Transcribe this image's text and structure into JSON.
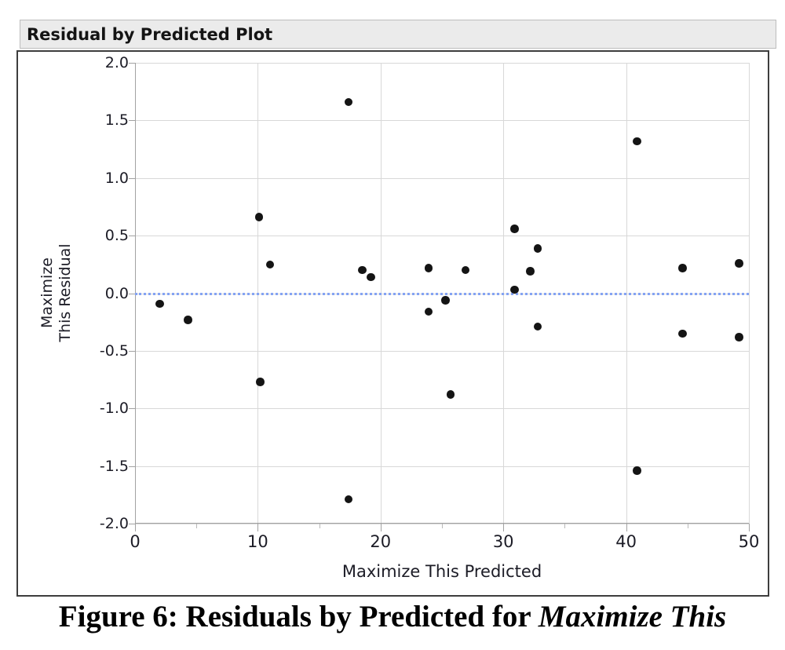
{
  "window": {
    "title": "Residual by Predicted Plot"
  },
  "chart_data": {
    "type": "scatter",
    "title": "Residual by Predicted Plot",
    "xlabel": "Maximize This Predicted",
    "ylabel": "Maximize This Residual",
    "ylabel_lines": [
      "Maximize",
      "This Residual"
    ],
    "xlim": [
      0,
      50
    ],
    "ylim": [
      -2.0,
      2.0
    ],
    "grid": true,
    "x_major_ticks": [
      0,
      10,
      20,
      30,
      40,
      50
    ],
    "x_tick_labels": [
      "0",
      "10",
      "20",
      "30",
      "40",
      "50"
    ],
    "x_minor_ticks": [
      5,
      15,
      25,
      35,
      45
    ],
    "y_ticks": [
      2.0,
      1.5,
      1.0,
      0.5,
      0.0,
      -0.5,
      -1.0,
      -1.5,
      -2.0
    ],
    "y_tick_labels": [
      "2.0",
      "1.5",
      "1.0",
      "0.5",
      "0.0",
      "-0.5",
      "-1.0",
      "-1.5",
      "-2.0"
    ],
    "reference_line": {
      "y": 0.0,
      "style": "dotted",
      "color": "#84a3f3"
    },
    "marker": {
      "shape": "circle",
      "color": "#141414",
      "radius": 5.2
    },
    "points": [
      [
        2.0,
        -0.09
      ],
      [
        4.3,
        -0.23
      ],
      [
        10.1,
        0.66
      ],
      [
        10.2,
        -0.77
      ],
      [
        11.0,
        0.25
      ],
      [
        17.4,
        1.66
      ],
      [
        17.4,
        -1.79
      ],
      [
        18.5,
        0.2
      ],
      [
        19.2,
        0.14
      ],
      [
        23.9,
        0.22
      ],
      [
        23.9,
        -0.16
      ],
      [
        25.3,
        -0.06
      ],
      [
        25.7,
        -0.88
      ],
      [
        26.9,
        0.2
      ],
      [
        30.9,
        0.56
      ],
      [
        30.9,
        0.03
      ],
      [
        32.2,
        0.19
      ],
      [
        32.8,
        0.39
      ],
      [
        32.8,
        -0.29
      ],
      [
        40.9,
        1.32
      ],
      [
        40.9,
        -1.54
      ],
      [
        44.6,
        0.22
      ],
      [
        44.6,
        -0.35
      ],
      [
        49.2,
        0.26
      ],
      [
        49.2,
        -0.38
      ]
    ]
  },
  "caption": {
    "prefix": "Figure 6: Residuals by Predicted for ",
    "emphasis": "Maximize This"
  },
  "colors": {
    "title_bar_bg": "#ebebeb",
    "title_bar_border": "#bdbdbd",
    "plot_border": "#3d3d3d",
    "gridline": "#d8d8d8",
    "axis": "#a2a2a2",
    "tick_label": "#1c1c26",
    "point": "#141414",
    "zero_line": "#84a3f3"
  }
}
